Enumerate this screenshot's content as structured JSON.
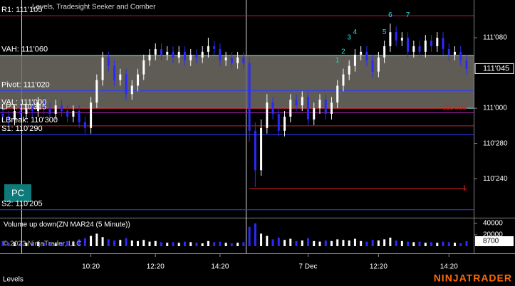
{
  "chart_data": {
    "type": "candlestick",
    "title": "Levels, Tradesight Seeker and Comber",
    "up_color": "#ffffff",
    "down_color": "#2a2aff",
    "categories": [
      null,
      null,
      null,
      null,
      null,
      null,
      null,
      null,
      null,
      null,
      null,
      null,
      null,
      null,
      null,
      "10:20",
      null,
      null,
      null,
      null,
      null,
      null,
      null,
      null,
      null,
      null,
      "12:20",
      null,
      null,
      null,
      null,
      null,
      null,
      null,
      null,
      null,
      null,
      "14:20",
      null,
      null,
      null,
      null,
      null,
      null,
      null,
      null,
      null,
      null,
      null,
      null,
      null,
      null,
      "7 Dec",
      null,
      null,
      null,
      null,
      null,
      null,
      null,
      null,
      null,
      null,
      null,
      "12:20",
      null,
      null,
      null,
      null,
      null,
      null,
      null,
      null,
      null,
      null,
      null,
      "14:20",
      null,
      null,
      null
    ],
    "open": [
      110.98,
      110.97,
      110.96,
      110.99,
      110.98,
      111.0,
      110.99,
      111.02,
      111.0,
      110.98,
      111.01,
      110.99,
      110.97,
      110.99,
      110.95,
      110.93,
      111.02,
      111.1,
      111.18,
      111.15,
      111.1,
      111.12,
      111.05,
      111.08,
      111.12,
      111.17,
      111.19,
      111.21,
      111.19,
      111.2,
      111.18,
      111.2,
      111.17,
      111.19,
      111.18,
      111.2,
      111.22,
      111.21,
      111.17,
      111.18,
      111.16,
      111.18,
      111.16,
      110.92,
      110.78,
      110.93,
      111.02,
      110.98,
      110.92,
      110.97,
      111.03,
      111.01,
      111.04,
      110.96,
      111.0,
      111.03,
      110.98,
      111.02,
      111.08,
      111.12,
      111.15,
      111.19,
      111.2,
      111.17,
      111.13,
      111.18,
      111.22,
      111.27,
      111.24,
      111.25,
      111.2,
      111.22,
      111.2,
      111.24,
      111.22,
      111.25,
      111.21,
      111.19,
      111.2,
      111.17
    ],
    "high": [
      111.0,
      110.99,
      111.01,
      111.01,
      111.02,
      111.02,
      111.04,
      111.04,
      111.02,
      111.03,
      111.03,
      111.01,
      111.01,
      111.01,
      110.97,
      111.04,
      111.12,
      111.2,
      111.2,
      111.17,
      111.14,
      111.14,
      111.1,
      111.14,
      111.19,
      111.21,
      111.23,
      111.23,
      111.22,
      111.22,
      111.22,
      111.22,
      111.21,
      111.21,
      111.22,
      111.25,
      111.24,
      111.23,
      111.2,
      111.2,
      111.2,
      111.2,
      111.18,
      110.95,
      110.96,
      111.05,
      111.04,
      111.0,
      110.99,
      111.05,
      111.05,
      111.06,
      111.06,
      111.02,
      111.05,
      111.05,
      111.04,
      111.1,
      111.14,
      111.17,
      111.21,
      111.22,
      111.22,
      111.19,
      111.2,
      111.24,
      111.3,
      111.29,
      111.27,
      111.27,
      111.24,
      111.24,
      111.26,
      111.26,
      111.27,
      111.27,
      111.23,
      111.22,
      111.22,
      111.19
    ],
    "low": [
      110.95,
      110.94,
      110.94,
      110.96,
      110.96,
      110.97,
      110.97,
      110.98,
      110.96,
      110.96,
      110.97,
      110.95,
      110.95,
      110.93,
      110.91,
      110.91,
      111.0,
      111.08,
      111.13,
      111.08,
      111.08,
      111.03,
      111.03,
      111.06,
      111.1,
      111.15,
      111.17,
      111.17,
      111.17,
      111.16,
      111.16,
      111.15,
      111.15,
      111.16,
      111.16,
      111.18,
      111.19,
      111.15,
      111.15,
      111.14,
      111.14,
      111.14,
      110.88,
      110.72,
      110.76,
      110.91,
      110.96,
      110.9,
      110.9,
      110.95,
      110.99,
      110.99,
      110.94,
      110.94,
      110.98,
      110.96,
      110.96,
      111.0,
      111.06,
      111.1,
      111.13,
      111.17,
      111.15,
      111.11,
      111.11,
      111.16,
      111.2,
      111.22,
      111.22,
      111.18,
      111.18,
      111.18,
      111.18,
      111.2,
      111.2,
      111.19,
      111.17,
      111.17,
      111.15,
      111.12
    ],
    "close": [
      110.97,
      110.96,
      110.99,
      110.98,
      111.0,
      110.99,
      111.02,
      111.0,
      110.98,
      111.01,
      110.99,
      110.97,
      110.99,
      110.95,
      110.93,
      111.02,
      111.1,
      111.18,
      111.15,
      111.1,
      111.12,
      111.05,
      111.08,
      111.12,
      111.17,
      111.19,
      111.21,
      111.19,
      111.2,
      111.18,
      111.2,
      111.17,
      111.19,
      111.18,
      111.2,
      111.22,
      111.21,
      111.17,
      111.18,
      111.16,
      111.18,
      111.16,
      110.92,
      110.78,
      110.93,
      111.02,
      110.98,
      110.92,
      110.97,
      111.03,
      111.01,
      111.04,
      110.96,
      111.0,
      111.03,
      110.98,
      111.02,
      111.08,
      111.12,
      111.15,
      111.19,
      111.2,
      111.17,
      111.13,
      111.18,
      111.22,
      111.27,
      111.24,
      111.25,
      111.2,
      111.22,
      111.2,
      111.24,
      111.22,
      111.25,
      111.21,
      111.19,
      111.2,
      111.17,
      111.14
    ],
    "ylim": [
      110.614,
      111.384
    ],
    "yticks": [
      {
        "value": 110.75,
        "label": "110'240"
      },
      {
        "value": 110.875,
        "label": "110'280"
      },
      {
        "value": 111.0,
        "label": "111'000"
      },
      {
        "value": 111.25,
        "label": "111'080"
      }
    ],
    "last_price": {
      "value": 111.1406,
      "label": "111'045"
    },
    "levels": [
      {
        "label": "R1: 111'105",
        "value": 111.328,
        "color": "#c8105a"
      },
      {
        "label": "VAH: 111'060",
        "value": 111.1875,
        "color": "#7fe0e0"
      },
      {
        "label": "Pivot: 111'020",
        "value": 111.0625,
        "color": "#2a3cff"
      },
      {
        "label": "VAL: 111'000",
        "value": 111.0,
        "color": "#7fe0e0"
      },
      {
        "label": "LPT: 110'315",
        "value": 110.984,
        "color": "#a020a0"
      },
      {
        "label": "LBreak: 110'300",
        "value": 110.9375,
        "color": "#c02828"
      },
      {
        "label": "S1: 110'290",
        "value": 110.906,
        "color": "#2a3cff"
      },
      {
        "label": "S2: 110'205",
        "value": 110.64,
        "color": "#2a3cff"
      }
    ],
    "value_area_color": "#6e6c64",
    "red_lines": [
      {
        "label": "111'000",
        "value": 111.0,
        "from": 0,
        "color": "#e02020"
      },
      {
        "label": "1",
        "value": 110.715,
        "from": 42,
        "color": "#e02020"
      }
    ],
    "markers": [
      {
        "label": "1",
        "bar": 57,
        "price": 111.17,
        "color": "#20e0a0"
      },
      {
        "label": "2",
        "bar": 58,
        "price": 111.2,
        "color": "#20e0c0"
      },
      {
        "label": "3",
        "bar": 59,
        "price": 111.25,
        "color": "#20e0e0"
      },
      {
        "label": "4",
        "bar": 60,
        "price": 111.27,
        "color": "#20e0e0"
      },
      {
        "label": "5",
        "bar": 65,
        "price": 111.27,
        "color": "#20e0e0"
      },
      {
        "label": "6",
        "bar": 66,
        "price": 111.33,
        "color": "#20e0e0"
      },
      {
        "label": "7",
        "bar": 69,
        "price": 111.33,
        "color": "#20e0e0"
      }
    ],
    "volume": {
      "title": "Volume up down(ZN MAR24 (5 Minute))",
      "values": [
        9000,
        6000,
        7000,
        5000,
        6000,
        5000,
        8000,
        6000,
        7000,
        5000,
        6000,
        9000,
        8000,
        12000,
        14000,
        18000,
        22000,
        16000,
        12000,
        10000,
        11000,
        14000,
        10000,
        9000,
        11000,
        8000,
        9000,
        7000,
        6000,
        7000,
        6000,
        8000,
        7000,
        6000,
        5000,
        9000,
        7000,
        8000,
        6000,
        5000,
        6000,
        7000,
        34000,
        40000,
        22000,
        18000,
        12000,
        15000,
        11000,
        13000,
        9000,
        10000,
        14000,
        9000,
        8000,
        10000,
        9000,
        12000,
        11000,
        10000,
        13000,
        9000,
        8000,
        11000,
        10000,
        12000,
        15000,
        10000,
        9000,
        8000,
        7000,
        8000,
        6000,
        7000,
        6000,
        8000,
        7000,
        6000,
        5000,
        8700
      ],
      "ylim": [
        0,
        47500
      ],
      "yticks": [
        20000,
        40000
      ]
    },
    "button": "PC",
    "copyright": "© 2023 NinjaTrader, LLC",
    "tab": "Levels",
    "brand": "NINJATRADER"
  }
}
